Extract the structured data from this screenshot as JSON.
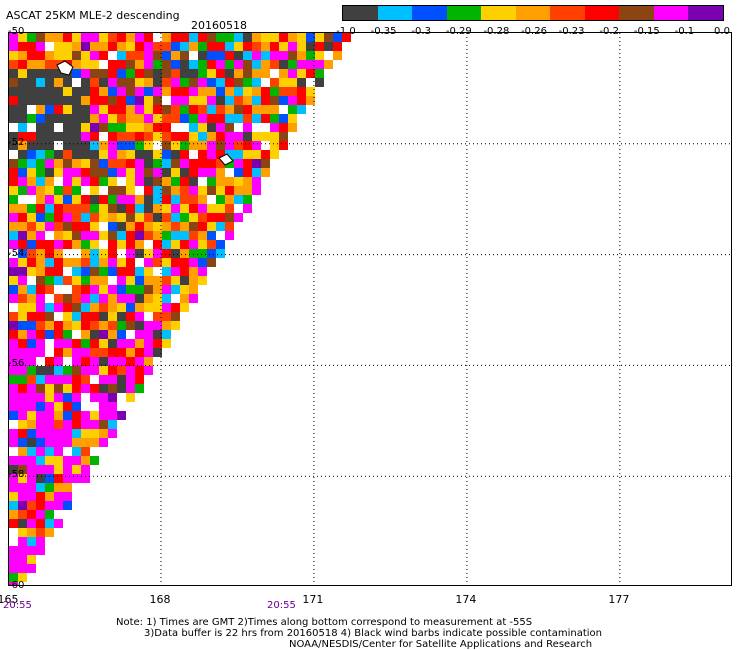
{
  "header": {
    "title": "ASCAT 25KM MLE-2 descending",
    "date": "20160518"
  },
  "colorbar": {
    "labels": [
      "-1.0",
      "-0.35",
      "-0.3",
      "-0.29",
      "-0.28",
      "-0.26",
      "-0.23",
      "-0.2",
      "-0.15",
      "-0.1",
      "0.0"
    ],
    "colors": [
      "#404040",
      "#00bfff",
      "#0050ff",
      "#00b400",
      "#ffd000",
      "#ffa000",
      "#ff4000",
      "#ff0000",
      "#8b4513",
      "#ff00ff",
      "#7a00b0"
    ]
  },
  "chart_data": {
    "type": "heatmap",
    "lon_ticks": [
      "165",
      "168",
      "171",
      "174",
      "177"
    ],
    "lat_ticks": [
      "-50",
      "-52",
      "-54",
      "-56",
      "-58",
      "-60"
    ],
    "xlim": [
      165,
      179
    ],
    "ylim": [
      -60,
      -50
    ],
    "grid": true,
    "swath": "triangular coverage in the western part, bounded by a diagonal from about 173E,-50 to 165E,-60",
    "time_labels": [
      "20:55",
      "20:55"
    ]
  },
  "notes": {
    "line1": "Note: 1) Times are GMT 2)Times along bottom correspond to measurement at -55S",
    "line2": "3)Data buffer is 22 hrs from 20160518 4) Black wind barbs indicate possible contamination",
    "line3": "NOAA/NESDIS/Center for Satellite Applications and Research"
  }
}
